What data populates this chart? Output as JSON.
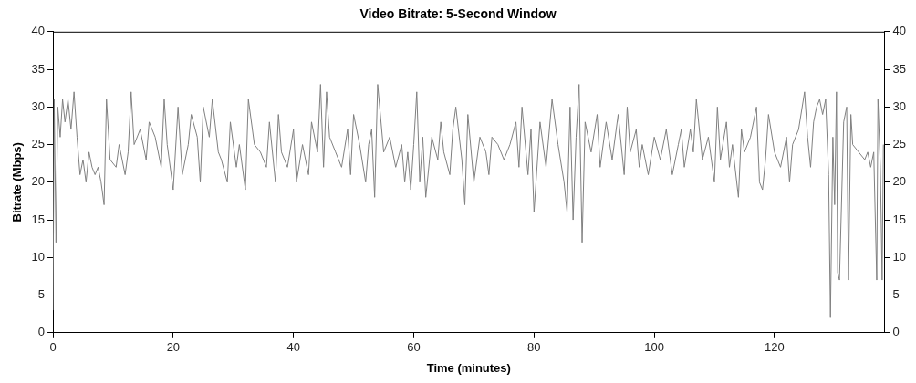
{
  "chart_data": {
    "type": "line",
    "title": "Video Bitrate: 5-Second Window",
    "xlabel": "Time (minutes)",
    "ylabel": "Bitrate (Mbps)",
    "x": [
      0,
      0.2,
      0.5,
      0.8,
      1.2,
      1.6,
      2,
      2.5,
      3,
      3.5,
      4,
      4.5,
      5,
      5.5,
      6,
      6.5,
      7,
      7.5,
      8,
      8.5,
      8.9,
      9.5,
      10.5,
      11,
      12,
      12.5,
      13,
      13.5,
      14.5,
      15.5,
      16,
      17,
      18,
      18.5,
      19,
      20,
      20.8,
      21.5,
      22.5,
      23,
      24,
      24.5,
      25,
      26,
      26.5,
      27.5,
      28,
      29,
      29.5,
      30.5,
      31,
      32,
      32.5,
      33.5,
      34.5,
      35.5,
      36,
      37,
      37.5,
      38,
      39,
      40,
      40.5,
      41.5,
      42.5,
      43,
      44,
      44.5,
      45,
      45.5,
      46,
      47,
      48,
      49,
      49.5,
      50,
      51,
      52,
      52.5,
      53,
      53.5,
      54,
      55,
      56,
      57,
      58,
      58.5,
      59,
      59.5,
      60,
      60.5,
      61,
      61.5,
      62,
      63,
      64,
      64.5,
      65,
      66,
      66.5,
      67,
      68,
      68.5,
      69,
      70,
      71,
      72,
      72.5,
      73,
      74,
      75,
      76,
      77,
      77.5,
      78,
      79,
      79.5,
      80,
      81,
      82,
      83,
      84,
      85,
      85.5,
      86,
      86.5,
      87,
      87.5,
      88,
      88.5,
      89.5,
      90.5,
      91,
      92,
      93,
      94,
      95,
      95.5,
      96,
      97,
      97.5,
      98,
      99,
      100,
      101,
      102,
      103,
      104,
      104.5,
      105,
      106,
      106.5,
      107,
      108,
      109,
      110,
      110.5,
      111,
      112,
      112.5,
      113,
      114,
      114.5,
      115,
      116,
      117,
      117.5,
      118,
      118.5,
      119,
      120,
      121,
      122,
      122.5,
      123,
      124,
      125,
      125.5,
      126,
      126.5,
      127,
      127.5,
      128,
      128.5,
      129,
      129.3,
      129.7,
      130,
      130.3,
      130.5,
      130.8,
      131.5,
      132,
      132.3,
      132.7,
      133,
      134,
      135,
      135.5,
      136,
      136.5,
      137,
      137.2,
      137.6,
      137.9,
      138.1
    ],
    "series": [
      {
        "color": "#808080",
        "values": [
          3,
          31,
          12,
          30,
          26,
          31,
          28,
          31,
          27,
          32,
          26,
          21,
          23,
          20,
          24,
          22,
          21,
          22,
          20,
          17,
          31,
          23,
          22,
          25,
          21,
          24,
          32,
          25,
          27,
          23,
          28,
          26,
          22,
          31,
          25,
          19,
          30,
          21,
          25,
          29,
          26,
          20,
          30,
          26,
          31,
          24,
          23,
          20,
          28,
          22,
          25,
          19,
          31,
          25,
          24,
          22,
          28,
          20,
          29,
          24,
          22,
          27,
          20,
          25,
          21,
          28,
          24,
          33,
          22,
          32,
          26,
          24,
          22,
          27,
          21,
          29,
          25,
          20,
          25,
          27,
          18,
          33,
          24,
          26,
          22,
          25,
          20,
          24,
          19,
          25,
          32,
          20,
          26,
          18,
          26,
          23,
          28,
          24,
          21,
          27,
          30,
          23,
          17,
          29,
          20,
          26,
          24,
          21,
          26,
          25,
          23,
          25,
          28,
          22,
          30,
          21,
          27,
          16,
          28,
          22,
          31,
          25,
          20,
          16,
          30,
          15,
          26,
          33,
          12,
          28,
          24,
          29,
          22,
          28,
          23,
          29,
          21,
          30,
          24,
          27,
          22,
          25,
          21,
          26,
          23,
          27,
          21,
          25,
          27,
          22,
          27,
          24,
          31,
          23,
          26,
          20,
          30,
          23,
          28,
          22,
          25,
          18,
          27,
          24,
          26,
          30,
          20,
          19,
          23,
          29,
          24,
          22,
          26,
          20,
          25,
          27,
          32,
          26,
          22,
          28,
          30,
          31,
          29,
          31,
          21,
          2,
          26,
          17,
          32,
          8,
          7,
          28,
          30,
          7,
          29,
          25,
          24,
          23,
          24,
          22,
          24,
          7,
          31,
          22,
          7,
          25
        ]
      }
    ],
    "xlim": [
      0,
      138.3
    ],
    "xticks": [
      0,
      20,
      40,
      60,
      80,
      100,
      120
    ],
    "ylim": [
      0,
      40
    ],
    "yticks": [
      0,
      5,
      10,
      15,
      20,
      25,
      30,
      35,
      40
    ],
    "y2lim": [
      0,
      40
    ],
    "y2ticks": [
      0,
      5,
      10,
      15,
      20,
      25,
      30,
      35,
      40
    ],
    "grid": false,
    "legend": false,
    "marker": "none",
    "line_style": "solid"
  }
}
